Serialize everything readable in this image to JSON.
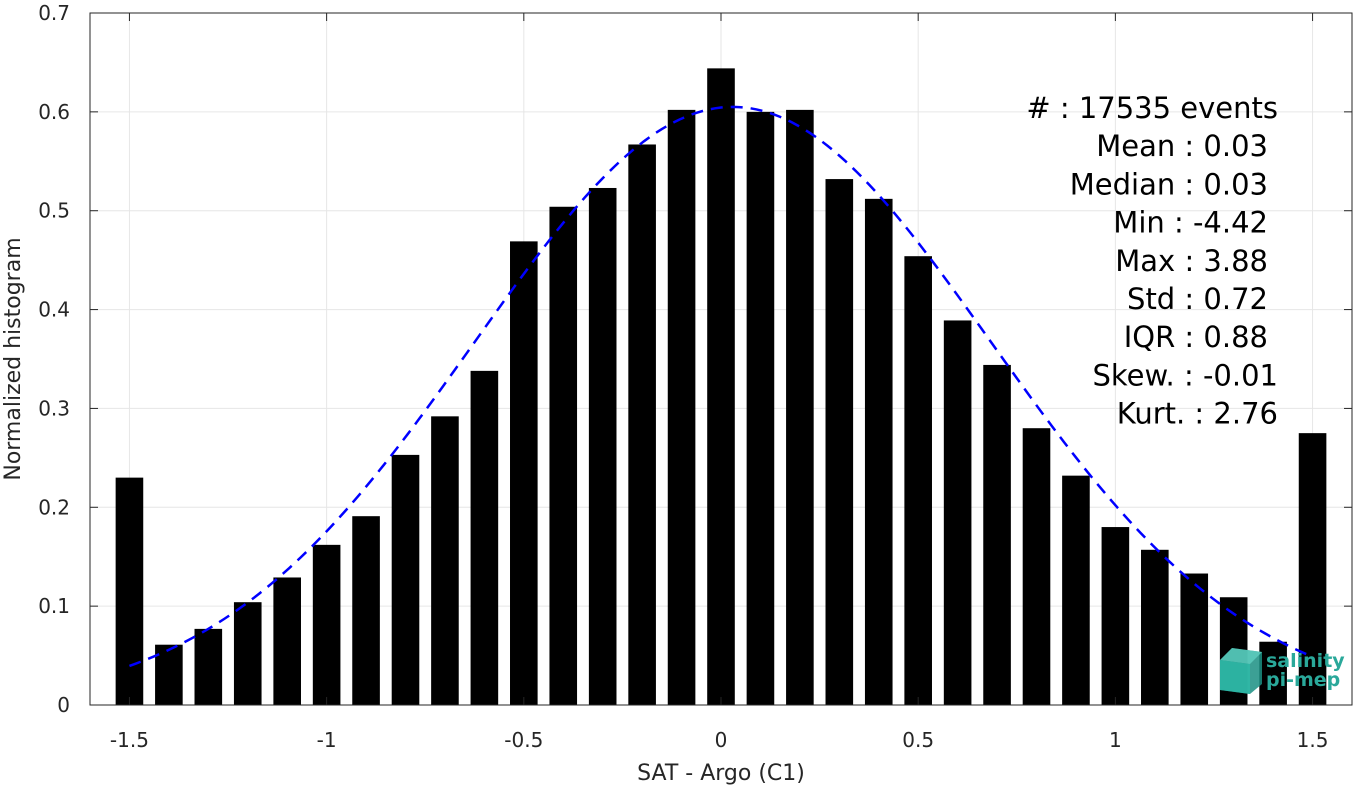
{
  "chart_data": {
    "type": "bar",
    "xlabel": "SAT - Argo (C1)",
    "ylabel": "Normalized histogram",
    "xlim": [
      -1.6,
      1.6
    ],
    "ylim": [
      0,
      0.7
    ],
    "xticks": [
      -1.5,
      -1,
      -0.5,
      0,
      0.5,
      1,
      1.5
    ],
    "xtick_labels": [
      "-1.5",
      "-1",
      "-0.5",
      "0",
      "0.5",
      "1",
      "1.5"
    ],
    "yticks": [
      0,
      0.1,
      0.2,
      0.3,
      0.4,
      0.5,
      0.6,
      0.7
    ],
    "ytick_labels": [
      "0",
      "0.1",
      "0.2",
      "0.3",
      "0.4",
      "0.5",
      "0.6",
      "0.7"
    ],
    "grid": true,
    "bar_color": "#000000",
    "bar_width": 0.07,
    "x": [
      -1.5,
      -1.4,
      -1.3,
      -1.2,
      -1.1,
      -1.0,
      -0.9,
      -0.8,
      -0.7,
      -0.6,
      -0.5,
      -0.4,
      -0.3,
      -0.2,
      -0.1,
      0.0,
      0.1,
      0.2,
      0.3,
      0.4,
      0.5,
      0.6,
      0.7,
      0.8,
      0.9,
      1.0,
      1.1,
      1.2,
      1.3,
      1.4,
      1.5
    ],
    "values": [
      0.23,
      0.061,
      0.077,
      0.104,
      0.129,
      0.162,
      0.191,
      0.253,
      0.292,
      0.338,
      0.469,
      0.504,
      0.523,
      0.567,
      0.602,
      0.644,
      0.6,
      0.602,
      0.532,
      0.512,
      0.454,
      0.389,
      0.344,
      0.28,
      0.232,
      0.18,
      0.157,
      0.133,
      0.109,
      0.064,
      0.275
    ],
    "fit": {
      "type": "gaussian",
      "color": "#0000ff",
      "style": "dashed",
      "mean": 0.03,
      "std": 0.655,
      "peak": 0.605,
      "range": [
        -1.5,
        1.5
      ]
    },
    "stats": [
      "#  : 17535 events",
      "Mean : 0.03",
      "Median : 0.03",
      "Min : -4.42",
      "Max : 3.88",
      "Std : 0.72",
      "IQR : 0.88",
      "Skew. : -0.01",
      "Kurt. : 2.76"
    ]
  },
  "logo": {
    "line1": "salinity",
    "line2": "pi-mep",
    "color": "#2aa89a",
    "icon": "cube-logo-icon"
  }
}
